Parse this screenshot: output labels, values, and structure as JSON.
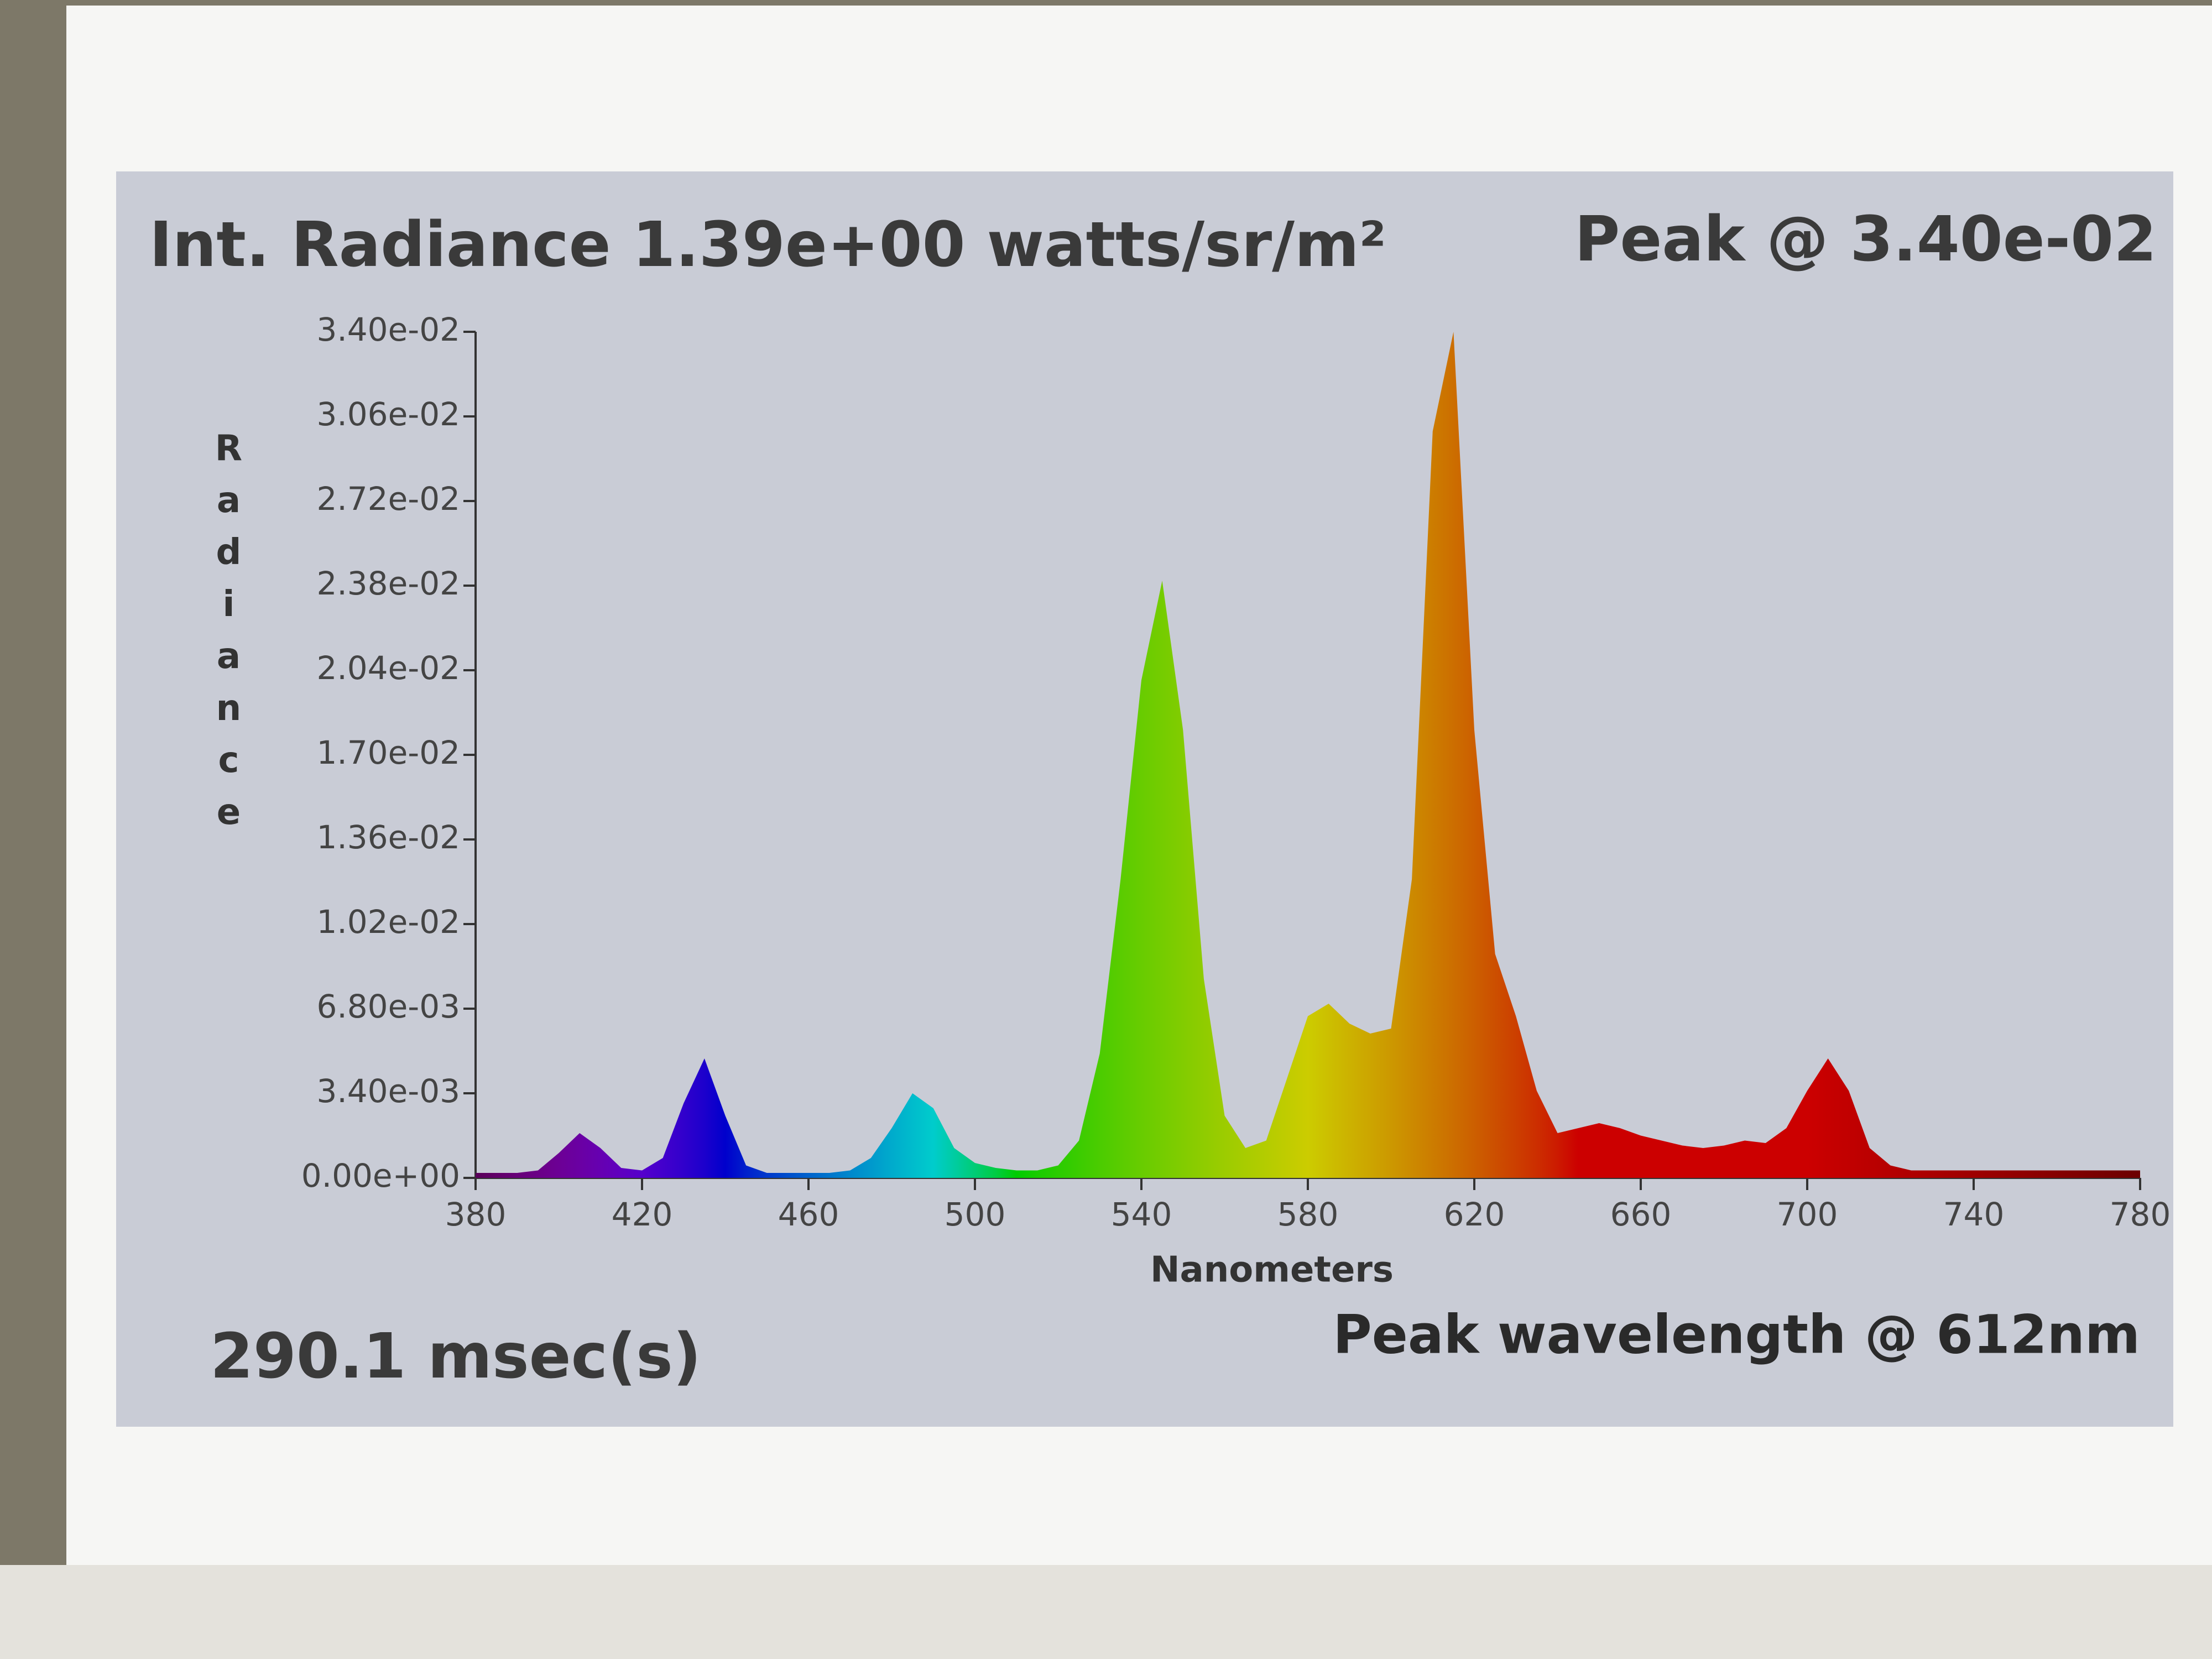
{
  "chart_data": {
    "type": "area",
    "title": "Int. Radiance 1.39e+00 watts/sr/m²",
    "subtitle": "Peak @ 3.40e-02",
    "annotations": [
      "290.1 msec(s)",
      "Peak wavelength @ 612nm"
    ],
    "x_label": "Nanometers",
    "y_label": "Radiance",
    "x": [
      380,
      385,
      390,
      395,
      400,
      405,
      410,
      415,
      420,
      425,
      430,
      435,
      440,
      445,
      450,
      455,
      460,
      465,
      470,
      475,
      480,
      485,
      490,
      495,
      500,
      505,
      510,
      515,
      520,
      525,
      530,
      535,
      540,
      545,
      550,
      555,
      560,
      565,
      570,
      575,
      580,
      585,
      590,
      595,
      600,
      605,
      610,
      615,
      620,
      625,
      630,
      635,
      640,
      645,
      650,
      655,
      660,
      665,
      670,
      675,
      680,
      685,
      690,
      695,
      700,
      705,
      710,
      715,
      720,
      725,
      730,
      735,
      740,
      745,
      750,
      755,
      760,
      765,
      770,
      775,
      780
    ],
    "values": [
      0.0002,
      0.0002,
      0.0002,
      0.0003,
      0.001,
      0.0018,
      0.0012,
      0.0004,
      0.0003,
      0.0008,
      0.003,
      0.0048,
      0.0025,
      0.0005,
      0.0002,
      0.0002,
      0.0002,
      0.0002,
      0.0003,
      0.0008,
      0.002,
      0.0034,
      0.0028,
      0.0012,
      0.0006,
      0.0004,
      0.0003,
      0.0003,
      0.0005,
      0.0015,
      0.005,
      0.012,
      0.02,
      0.024,
      0.018,
      0.008,
      0.0025,
      0.0012,
      0.0015,
      0.004,
      0.0065,
      0.007,
      0.0062,
      0.0058,
      0.006,
      0.012,
      0.03,
      0.034,
      0.018,
      0.009,
      0.0065,
      0.0035,
      0.0018,
      0.002,
      0.0022,
      0.002,
      0.0017,
      0.0015,
      0.0013,
      0.0012,
      0.0013,
      0.0015,
      0.0014,
      0.002,
      0.0035,
      0.0048,
      0.0035,
      0.0012,
      0.0005,
      0.0003,
      0.0003,
      0.0003,
      0.0003,
      0.0003,
      0.0003,
      0.0003,
      0.0003,
      0.0003,
      0.0003,
      0.0003,
      0.0003
    ],
    "xlim": [
      380,
      780
    ],
    "xticks": [
      380,
      420,
      460,
      500,
      540,
      580,
      620,
      660,
      700,
      740,
      780
    ],
    "ylim": [
      0,
      0.034
    ],
    "yticks": [
      {
        "value": 0,
        "label": "0.00e+00"
      },
      {
        "value": 0.0034,
        "label": "3.40e-03"
      },
      {
        "value": 0.0068,
        "label": "6.80e-03"
      },
      {
        "value": 0.0102,
        "label": "1.02e-02"
      },
      {
        "value": 0.0136,
        "label": "1.36e-02"
      },
      {
        "value": 0.017,
        "label": "1.70e-02"
      },
      {
        "value": 0.0204,
        "label": "2.04e-02"
      },
      {
        "value": 0.0238,
        "label": "2.38e-02"
      },
      {
        "value": 0.0272,
        "label": "2.72e-02"
      },
      {
        "value": 0.0306,
        "label": "3.06e-02"
      },
      {
        "value": 0.034,
        "label": "3.40e-02"
      }
    ],
    "color_by_wavelength": true
  }
}
